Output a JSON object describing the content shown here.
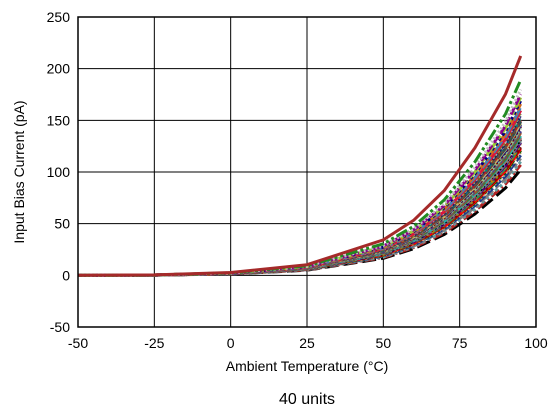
{
  "chart_data": {
    "type": "line",
    "xlabel": "Ambient Temperature (°C)",
    "ylabel": "Input Bias Current (pA)",
    "caption": "40 units",
    "xlim": [
      -50,
      100
    ],
    "ylim": [
      -50,
      250
    ],
    "xticks": [
      "-50",
      "-25",
      "0",
      "25",
      "50",
      "75",
      "100"
    ],
    "yticks": [
      "-50",
      "0",
      "50",
      "100",
      "150",
      "200",
      "250"
    ],
    "grid": true,
    "legend": "none",
    "x": [
      -50,
      -25,
      0,
      25,
      50,
      60,
      70,
      80,
      90,
      95
    ],
    "series_profile": [
      0,
      0.3,
      2.0,
      7.5,
      25,
      39,
      60,
      90,
      128,
      155
    ],
    "series_scale": [
      0.66,
      0.69,
      0.71,
      0.73,
      0.75,
      0.77,
      0.78,
      0.79,
      0.8,
      0.81,
      0.82,
      0.83,
      0.84,
      0.85,
      0.86,
      0.87,
      0.88,
      0.89,
      0.9,
      0.91,
      0.92,
      0.93,
      0.94,
      0.95,
      0.96,
      0.97,
      0.98,
      0.99,
      1.0,
      1.01,
      1.02,
      1.03,
      1.05,
      1.07,
      1.09,
      1.11,
      1.13,
      1.16,
      1.22,
      1.37
    ],
    "colors": [
      "#000000",
      "#b22222",
      "#5f9ea0",
      "#808080",
      "#1e3a8a",
      "#d2b48c",
      "#006400",
      "#ff0000",
      "#8b0000",
      "#2e8b57",
      "#b8860b",
      "#4b0082",
      "#708090",
      "#000000",
      "#cd5c5c",
      "#20b2aa",
      "#556b2f",
      "#a0522d",
      "#483d8b",
      "#696969",
      "#8fbc8f",
      "#800000",
      "#00008b",
      "#bdb76b",
      "#2f4f4f",
      "#b22222",
      "#008080",
      "#8b4513",
      "#191970",
      "#a9a9a9",
      "#6b8e23",
      "#dc143c",
      "#4682b4",
      "#d2691e",
      "#000080",
      "#9acd32",
      "#8b008b",
      "#c0c0c0",
      "#228b22",
      "#a52a2a"
    ]
  }
}
